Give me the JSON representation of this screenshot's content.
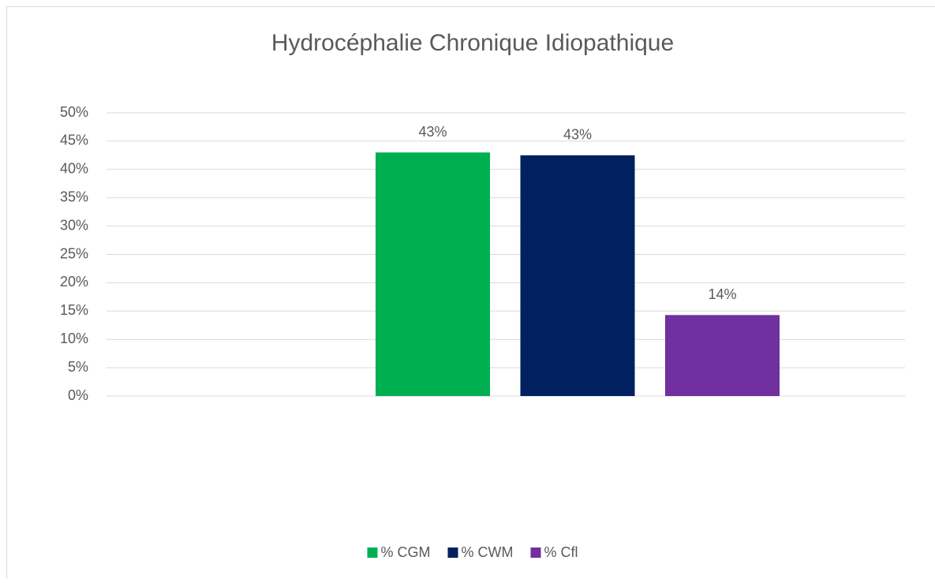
{
  "chart_data": {
    "type": "bar",
    "title": "Hydrocéphalie Chronique Idiopathique",
    "categories": [
      null
    ],
    "series": [
      {
        "name": "% CGM",
        "color": "#00b050",
        "values": [
          43
        ],
        "value_labels": [
          "43%"
        ]
      },
      {
        "name": "% CWM",
        "color": "#002060",
        "values": [
          42.5
        ],
        "value_labels": [
          "43%"
        ]
      },
      {
        "name": "% Cfl",
        "color": "#7030a0",
        "values": [
          14.3
        ],
        "value_labels": [
          "14%"
        ]
      }
    ],
    "ylim": [
      0,
      50
    ],
    "yticks": [
      {
        "value": 0,
        "label": "0%"
      },
      {
        "value": 5,
        "label": "5%"
      },
      {
        "value": 10,
        "label": "10%"
      },
      {
        "value": 15,
        "label": "15%"
      },
      {
        "value": 20,
        "label": "20%"
      },
      {
        "value": 25,
        "label": "25%"
      },
      {
        "value": 30,
        "label": "30%"
      },
      {
        "value": 35,
        "label": "35%"
      },
      {
        "value": 40,
        "label": "40%"
      },
      {
        "value": 45,
        "label": "45%"
      },
      {
        "value": 50,
        "label": "50%"
      }
    ],
    "grid": true,
    "legend": "bottom"
  }
}
